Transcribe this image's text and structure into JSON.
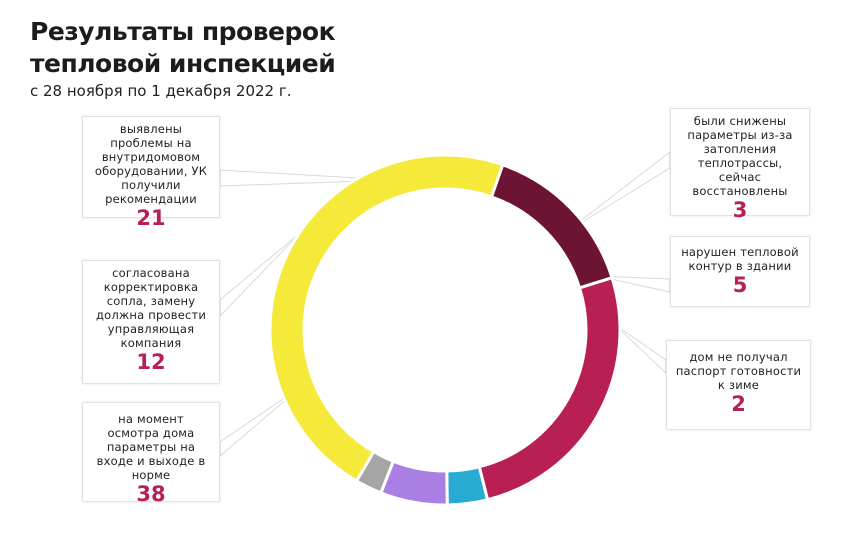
{
  "header": {
    "title_line1": "Результаты проверок",
    "title_line2": "тепловой инспекцией",
    "subtitle": "с 28 ноября по 1 декабря 2022 г."
  },
  "chart_data": {
    "type": "donut",
    "title": "Результаты проверок тепловой инспекцией",
    "subtitle": "с 28 ноября по 1 декабря 2022 г.",
    "slices": [
      {
        "label": "выявлены проблемы на внутридомовом оборудовании, УК получили рекомендации",
        "value": 21,
        "color": "#b71f55"
      },
      {
        "label": "были снижены параметры из-за затопления теплотрассы, сейчас восстановлены",
        "value": 3,
        "color": "#27abd2"
      },
      {
        "label": "нарушен тепловой контур в здании",
        "value": 5,
        "color": "#a97fe4"
      },
      {
        "label": "дом не получал паспорт готовности к зиме",
        "value": 2,
        "color": "#a5a5a5"
      },
      {
        "label": "на момент осмотра дома параметры на входе и выходе в норме",
        "value": 38,
        "color": "#f5e93a"
      },
      {
        "label": "согласована корректировка сопла, замену должна провести управляющая компания",
        "value": 12,
        "color": "#6d1333"
      }
    ]
  }
}
